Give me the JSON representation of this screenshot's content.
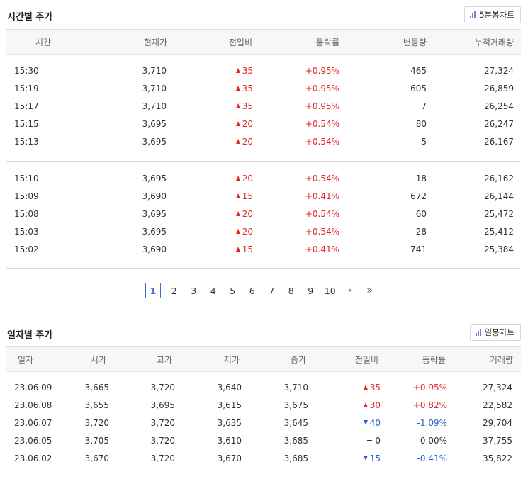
{
  "time_section": {
    "title": "시간별 주가",
    "chart_button": "5분봉차트",
    "headers": [
      "시간",
      "현재가",
      "전일비",
      "등락률",
      "변동량",
      "누적거래량"
    ],
    "rows": [
      {
        "time": "15:30",
        "price": "3,710",
        "diff": "35",
        "dir": "up",
        "rate": "+0.95%",
        "vol": "465",
        "acc": "27,324"
      },
      {
        "time": "15:19",
        "price": "3,710",
        "diff": "35",
        "dir": "up",
        "rate": "+0.95%",
        "vol": "605",
        "acc": "26,859"
      },
      {
        "time": "15:17",
        "price": "3,710",
        "diff": "35",
        "dir": "up",
        "rate": "+0.95%",
        "vol": "7",
        "acc": "26,254"
      },
      {
        "time": "15:15",
        "price": "3,695",
        "diff": "20",
        "dir": "up",
        "rate": "+0.54%",
        "vol": "80",
        "acc": "26,247"
      },
      {
        "time": "15:13",
        "price": "3,695",
        "diff": "20",
        "dir": "up",
        "rate": "+0.54%",
        "vol": "5",
        "acc": "26,167"
      },
      {
        "time": "15:10",
        "price": "3,695",
        "diff": "20",
        "dir": "up",
        "rate": "+0.54%",
        "vol": "18",
        "acc": "26,162"
      },
      {
        "time": "15:09",
        "price": "3,690",
        "diff": "15",
        "dir": "up",
        "rate": "+0.41%",
        "vol": "672",
        "acc": "26,144"
      },
      {
        "time": "15:08",
        "price": "3,695",
        "diff": "20",
        "dir": "up",
        "rate": "+0.54%",
        "vol": "60",
        "acc": "25,472"
      },
      {
        "time": "15:03",
        "price": "3,695",
        "diff": "20",
        "dir": "up",
        "rate": "+0.54%",
        "vol": "28",
        "acc": "25,412"
      },
      {
        "time": "15:02",
        "price": "3,690",
        "diff": "15",
        "dir": "up",
        "rate": "+0.41%",
        "vol": "741",
        "acc": "25,384"
      }
    ]
  },
  "pagination": {
    "current": "1",
    "pages": [
      "2",
      "3",
      "4",
      "5",
      "6",
      "7",
      "8",
      "9",
      "10"
    ],
    "next": "›",
    "last": "»"
  },
  "daily_section": {
    "title": "일자별 주가",
    "chart_button": "일봉차트",
    "headers": [
      "일자",
      "시가",
      "고가",
      "저가",
      "종가",
      "전일비",
      "등락률",
      "거래량"
    ],
    "rows": [
      {
        "date": "23.06.09",
        "open": "3,665",
        "high": "3,720",
        "low": "3,640",
        "close": "3,710",
        "diff": "35",
        "dir": "up",
        "rate": "+0.95%",
        "vol": "27,324"
      },
      {
        "date": "23.06.08",
        "open": "3,655",
        "high": "3,695",
        "low": "3,615",
        "close": "3,675",
        "diff": "30",
        "dir": "up",
        "rate": "+0.82%",
        "vol": "22,582"
      },
      {
        "date": "23.06.07",
        "open": "3,720",
        "high": "3,720",
        "low": "3,635",
        "close": "3,645",
        "diff": "40",
        "dir": "down",
        "rate": "-1.09%",
        "vol": "29,704"
      },
      {
        "date": "23.06.05",
        "open": "3,705",
        "high": "3,720",
        "low": "3,610",
        "close": "3,685",
        "diff": "0",
        "dir": "flat",
        "rate": "0.00%",
        "vol": "37,755"
      },
      {
        "date": "23.06.02",
        "open": "3,670",
        "high": "3,720",
        "low": "3,670",
        "close": "3,685",
        "diff": "15",
        "dir": "down",
        "rate": "-0.41%",
        "vol": "35,822"
      }
    ]
  },
  "colors": {
    "up": "#e22926",
    "down": "#2b5ecb",
    "accent": "#3b6fd9"
  }
}
